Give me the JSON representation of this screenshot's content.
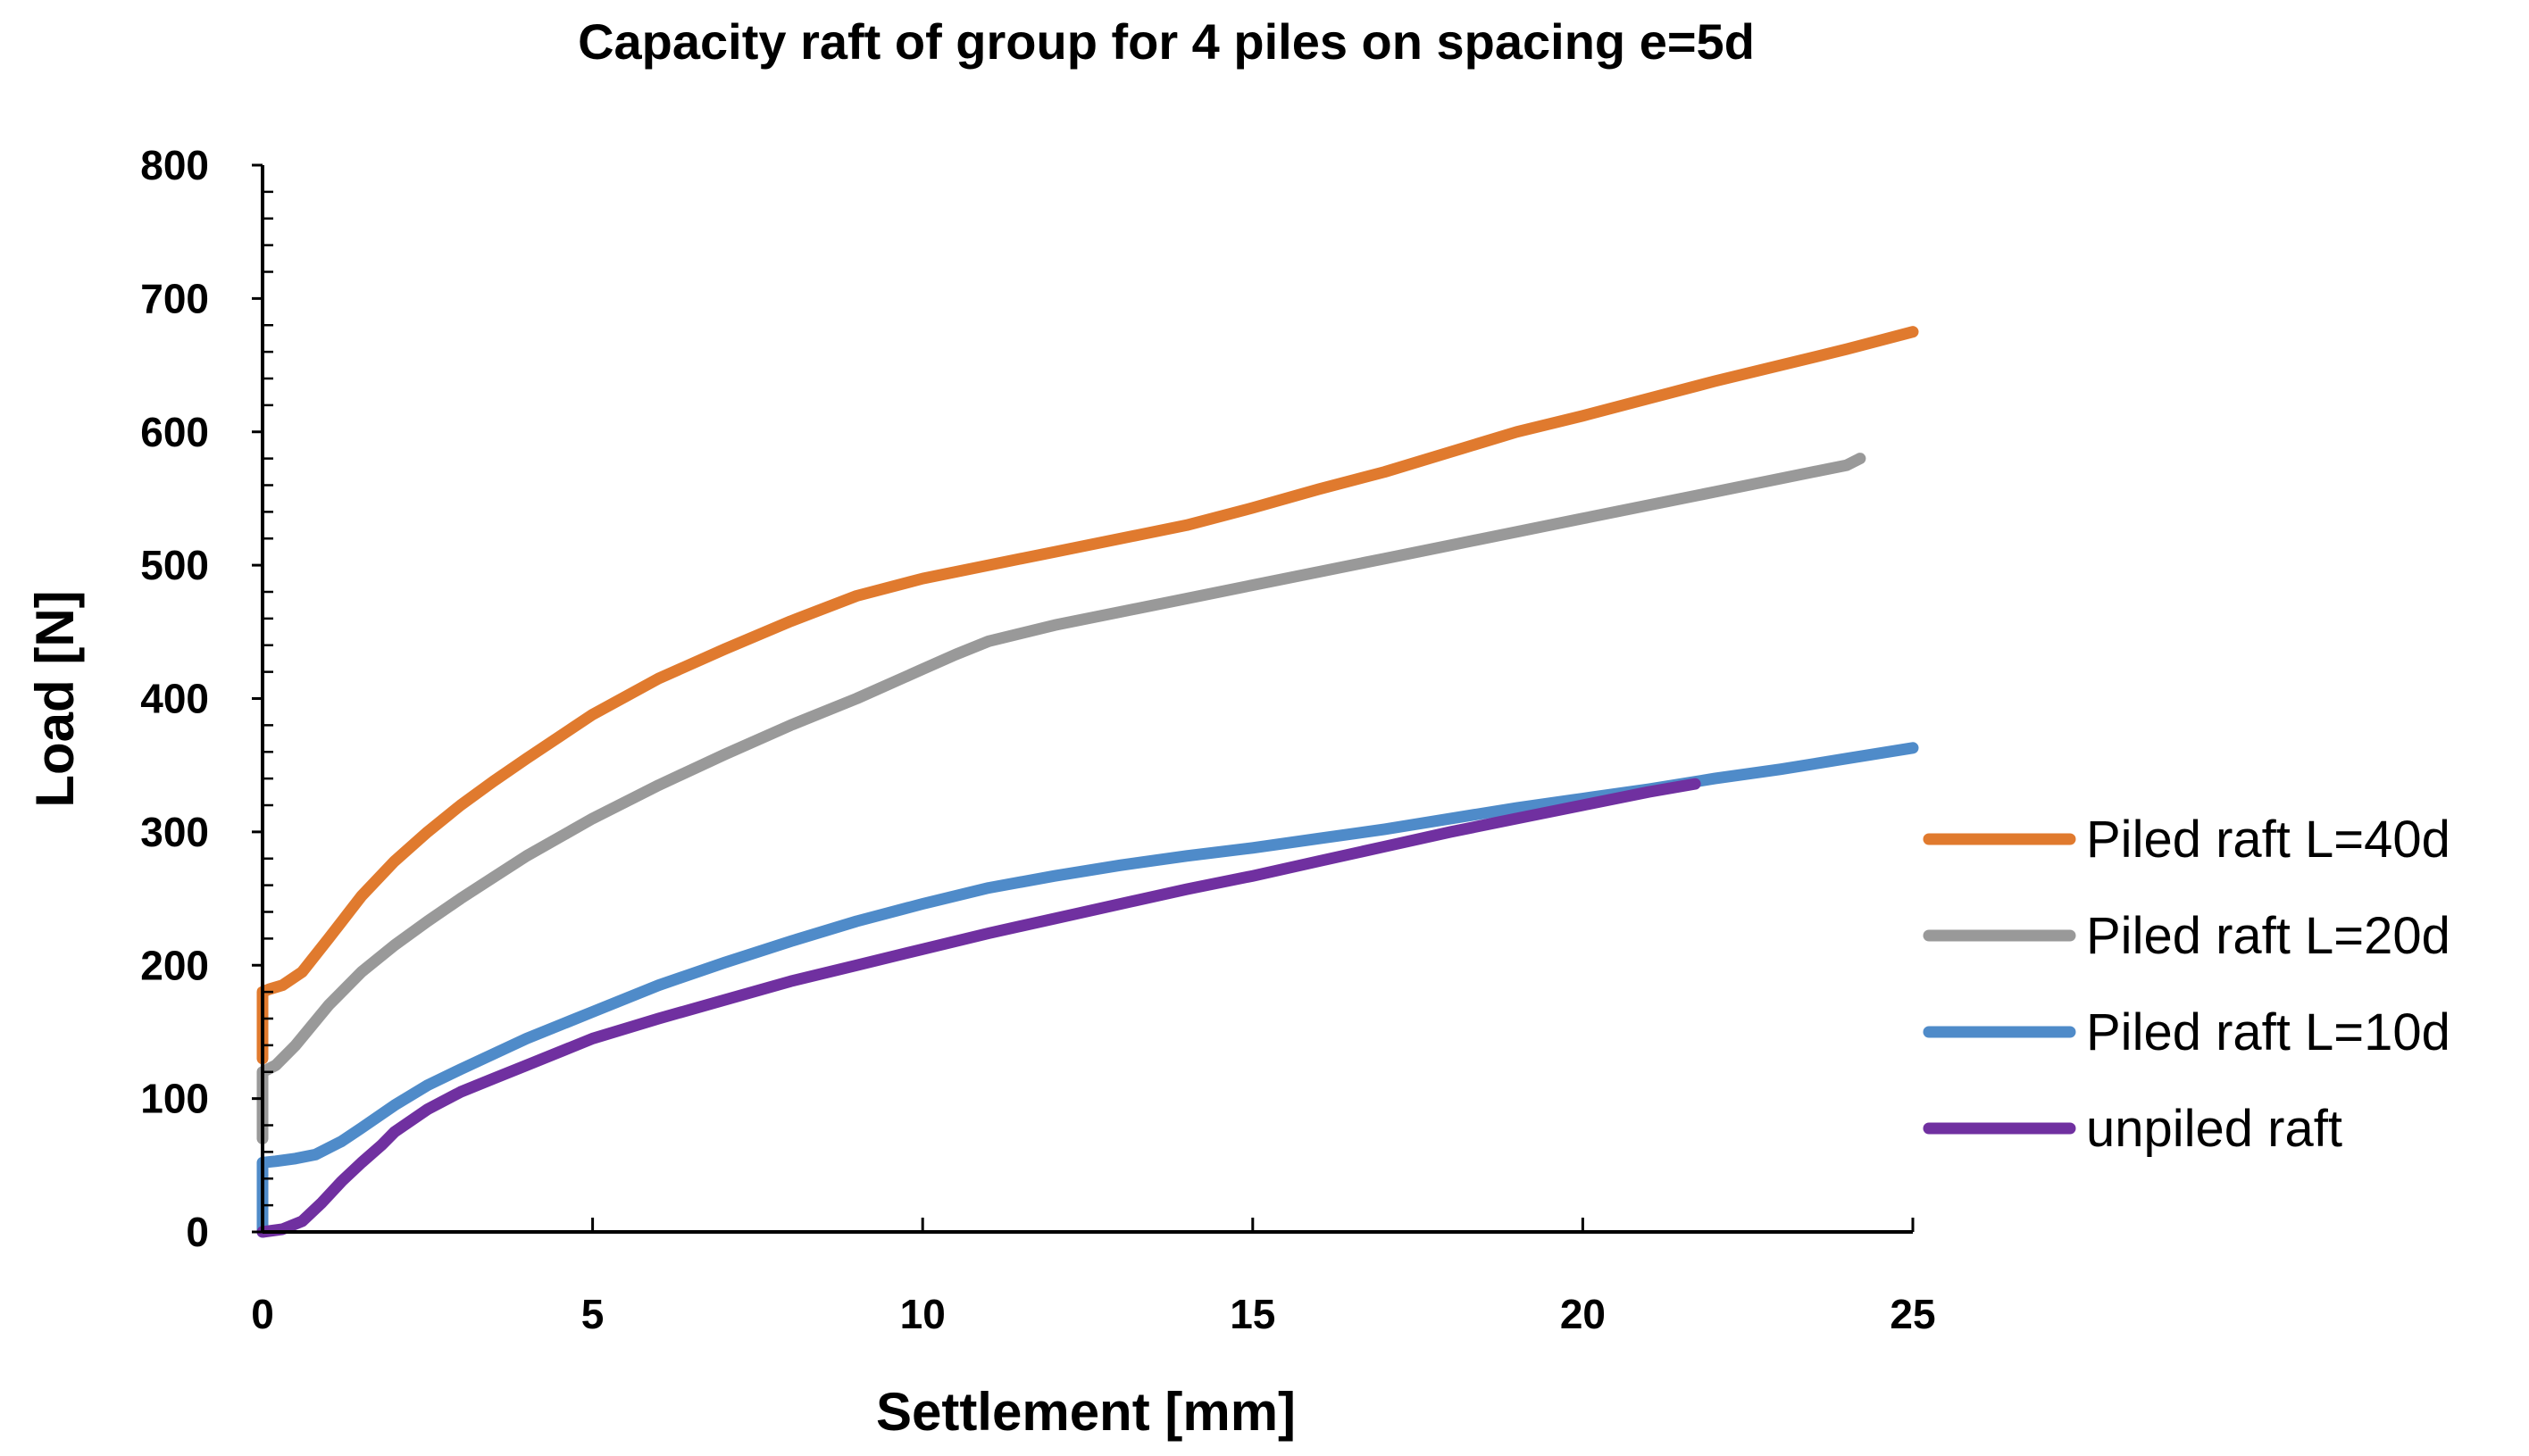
{
  "chart_data": {
    "type": "line",
    "title": "Capacity raft of group for 4 piles on spacing  e=5d",
    "xlabel": "Settlement [mm]",
    "ylabel": "Load [N]",
    "xlim": [
      0,
      25
    ],
    "ylim": [
      0,
      800
    ],
    "xticks": [
      0,
      5,
      10,
      15,
      20,
      25
    ],
    "yticks": [
      0,
      100,
      200,
      300,
      400,
      500,
      600,
      700,
      800
    ],
    "grid": false,
    "legend_position": "right",
    "series": [
      {
        "name": "Piled raft L=40d",
        "color": "#E07A2E",
        "x": [
          0,
          0,
          0.1,
          0.3,
          0.6,
          1.0,
          1.5,
          2.0,
          2.5,
          3.0,
          3.5,
          4.0,
          5.0,
          6.0,
          7.0,
          8.0,
          9.0,
          10.0,
          11.0,
          12.0,
          13.0,
          14.0,
          15.0,
          16.0,
          17.0,
          18.0,
          19.0,
          20.0,
          21.0,
          22.0,
          23.0,
          24.0,
          25.0
        ],
        "y": [
          130,
          180,
          182,
          185,
          195,
          220,
          252,
          278,
          300,
          320,
          338,
          355,
          388,
          415,
          437,
          458,
          477,
          490,
          500,
          510,
          520,
          530,
          543,
          557,
          570,
          585,
          600,
          612,
          625,
          638,
          650,
          662,
          675
        ]
      },
      {
        "name": "Piled raft L=20d",
        "color": "#999999",
        "x": [
          0,
          0,
          0.2,
          0.5,
          1.0,
          1.5,
          2.0,
          2.5,
          3.0,
          3.5,
          4.0,
          5.0,
          6.0,
          7.0,
          8.0,
          9.0,
          10.0,
          10.5,
          11.0,
          12.0,
          13.0,
          14.0,
          15.0,
          16.0,
          17.0,
          18.0,
          19.0,
          20.0,
          21.0,
          22.0,
          23.0,
          24.0,
          24.2
        ],
        "y": [
          70,
          120,
          125,
          140,
          170,
          195,
          215,
          233,
          250,
          266,
          282,
          310,
          335,
          358,
          380,
          400,
          422,
          433,
          443,
          455,
          465,
          475,
          485,
          495,
          505,
          515,
          525,
          535,
          545,
          555,
          565,
          575,
          580
        ]
      },
      {
        "name": "Piled raft L=10d",
        "color": "#4F8BC9",
        "x": [
          0,
          0,
          0.2,
          0.5,
          0.8,
          1.2,
          1.5,
          2.0,
          2.5,
          3.0,
          4.0,
          5.0,
          6.0,
          7.0,
          8.0,
          9.0,
          10.0,
          11.0,
          12.0,
          13.0,
          14.0,
          15.0,
          16.0,
          17.0,
          18.0,
          19.0,
          20.0,
          21.0,
          22.0,
          23.0,
          24.0,
          25.0
        ],
        "y": [
          0,
          52,
          53,
          55,
          58,
          68,
          78,
          95,
          110,
          122,
          145,
          165,
          185,
          202,
          218,
          233,
          246,
          258,
          267,
          275,
          282,
          288,
          295,
          302,
          310,
          318,
          325,
          332,
          340,
          347,
          355,
          363
        ]
      },
      {
        "name": "unpiled raft",
        "color": "#7030A0",
        "x": [
          0,
          0.3,
          0.6,
          0.9,
          1.2,
          1.5,
          1.8,
          2.0,
          2.5,
          3.0,
          3.5,
          4.0,
          5.0,
          6.0,
          7.0,
          8.0,
          9.0,
          10.0,
          11.0,
          12.0,
          13.0,
          14.0,
          15.0,
          16.0,
          17.0,
          18.0,
          19.0,
          20.0,
          21.0,
          21.7
        ],
        "y": [
          0,
          2,
          8,
          22,
          38,
          52,
          65,
          75,
          92,
          105,
          115,
          125,
          145,
          160,
          174,
          188,
          200,
          212,
          224,
          235,
          246,
          257,
          267,
          278,
          289,
          300,
          310,
          320,
          330,
          336
        ]
      }
    ]
  }
}
